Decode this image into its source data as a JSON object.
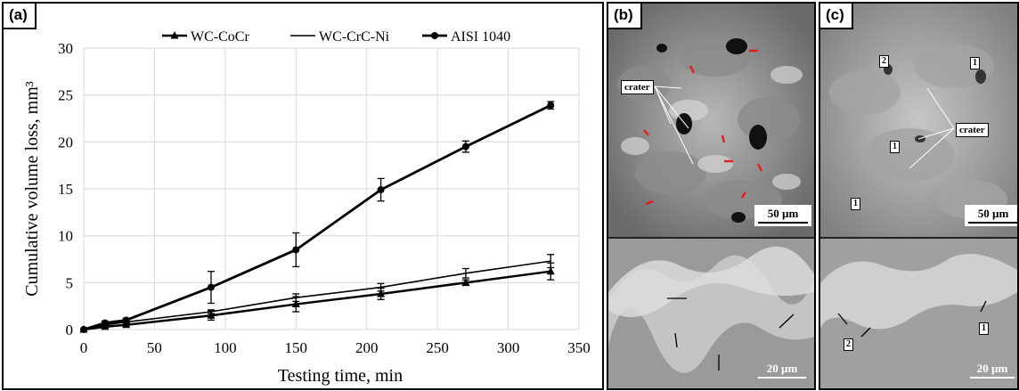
{
  "panels": {
    "a": {
      "tag": "(a)"
    },
    "b": {
      "tag": "(b)",
      "crater_label": "crater",
      "scale_top": "50 µm",
      "scale_bottom": "20 µm"
    },
    "c": {
      "tag": "(c)",
      "crater_label": "crater",
      "scale_top": "50 µm",
      "scale_bottom": "20 µm",
      "markers_top": [
        "2",
        "1",
        "1",
        "1"
      ],
      "markers_bottom": [
        "2",
        "1"
      ]
    }
  },
  "chart_data": {
    "type": "line",
    "title": "",
    "xlabel": "Testing time, min",
    "ylabel": "Cumulative volume loss, mm³",
    "xlim": [
      0,
      350
    ],
    "ylim": [
      0,
      30
    ],
    "xticks": [
      "0",
      "50",
      "100",
      "150",
      "200",
      "250",
      "300",
      "350"
    ],
    "yticks": [
      "0",
      "5",
      "10",
      "15",
      "20",
      "25",
      "30"
    ],
    "grid": true,
    "legend_position": "top",
    "x": [
      0,
      15,
      30,
      90,
      150,
      210,
      270,
      330
    ],
    "series": [
      {
        "name": "WC-CoCr",
        "marker": "triangle",
        "values": [
          0,
          0.3,
          0.5,
          1.5,
          2.7,
          3.8,
          5.0,
          6.2
        ],
        "errors": [
          0,
          0.1,
          0.1,
          0.5,
          0.8,
          0.6,
          0.3,
          0.9
        ]
      },
      {
        "name": "WC-CrC-Ni",
        "marker": "none",
        "values": [
          0,
          0.5,
          0.8,
          1.9,
          3.4,
          4.5,
          6.0,
          7.3
        ],
        "errors": [
          0,
          0.1,
          0.1,
          0.2,
          0.4,
          0.4,
          0.5,
          0.7
        ]
      },
      {
        "name": "AISI 1040",
        "marker": "circle",
        "values": [
          0,
          0.7,
          1.0,
          4.5,
          8.5,
          14.9,
          19.5,
          23.9
        ],
        "errors": [
          0,
          0.2,
          0.2,
          1.7,
          1.8,
          1.2,
          0.6,
          0.4
        ]
      }
    ]
  }
}
